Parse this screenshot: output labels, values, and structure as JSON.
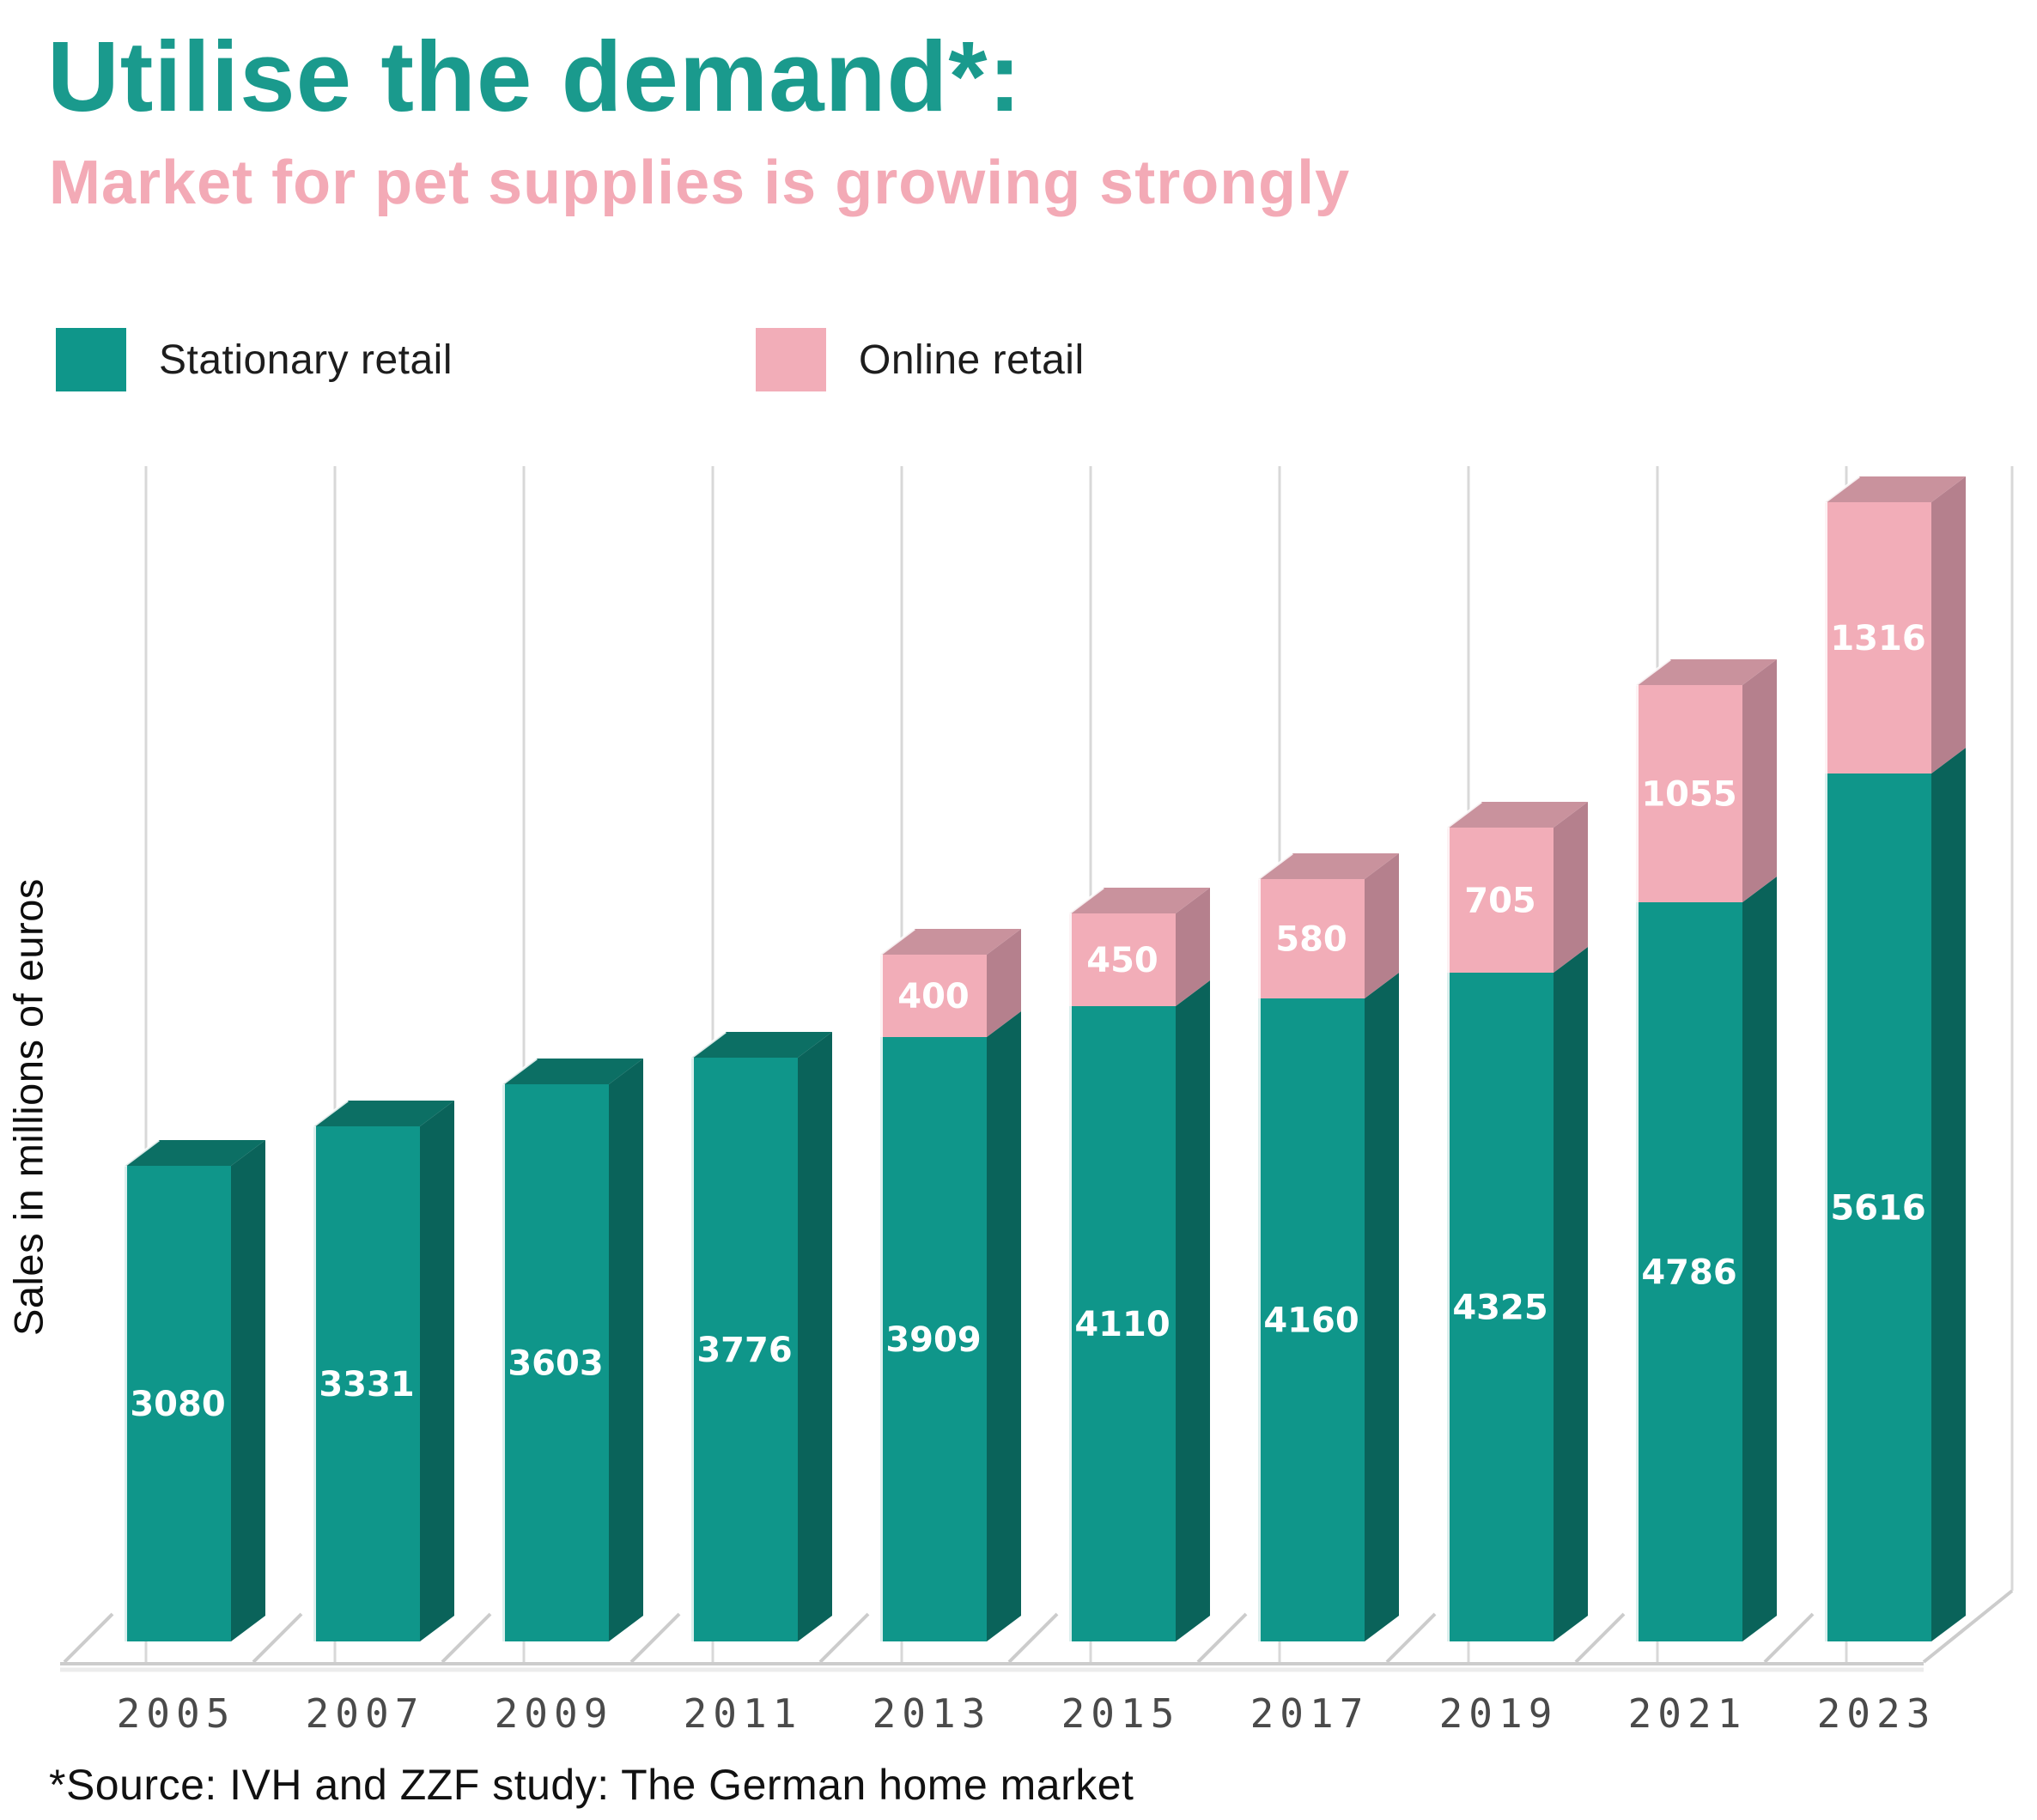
{
  "page": {
    "title": "Utilise the demand*:",
    "subtitle": "Market for pet supplies is growing strongly",
    "y_axis_label": "Sales in millions of euros",
    "source_note": "*Source: IVH and ZZF study: The German home market"
  },
  "legend": {
    "items": [
      {
        "label": "Stationary retail",
        "color": "#0f968a"
      },
      {
        "label": "Online retail",
        "color": "#f2adb8"
      }
    ]
  },
  "colors": {
    "title": "#1a9a8d",
    "subtitle": "#f3aab6",
    "stationary_front": "#0f968a",
    "stationary_side": "#0a635a",
    "stationary_top": "#0c6f64",
    "online_front": "#f2adb8",
    "online_side": "#b5808d",
    "online_top": "#c9929d",
    "gridline": "#d8d8d8",
    "floor_line": "#cccccc",
    "floor_line_echo": "#ececec",
    "edge_highlight": "#ffffff",
    "year_label": "#4a4a4a",
    "value_label": "#ffffff",
    "source": "#111111"
  },
  "chart_data": {
    "type": "bar",
    "stacked": true,
    "style_3d": true,
    "categories": [
      "2005",
      "2007",
      "2009",
      "2011",
      "2013",
      "2015",
      "2017",
      "2019",
      "2021",
      "2023"
    ],
    "series": [
      {
        "name": "Stationary retail",
        "color": "#0f968a",
        "values": [
          3080,
          3331,
          3603,
          3776,
          3909,
          4110,
          4160,
          4325,
          4786,
          5616
        ]
      },
      {
        "name": "Online retail",
        "color": "#f2adb8",
        "values": [
          0,
          0,
          0,
          0,
          400,
          450,
          580,
          705,
          1055,
          1316
        ]
      }
    ],
    "title": "Utilise the demand*: Market for pet supplies is growing strongly",
    "xlabel": "",
    "ylabel": "Sales in millions of euros",
    "value_labels": "inside-segments",
    "legend_position": "top",
    "grid": "vertical"
  }
}
